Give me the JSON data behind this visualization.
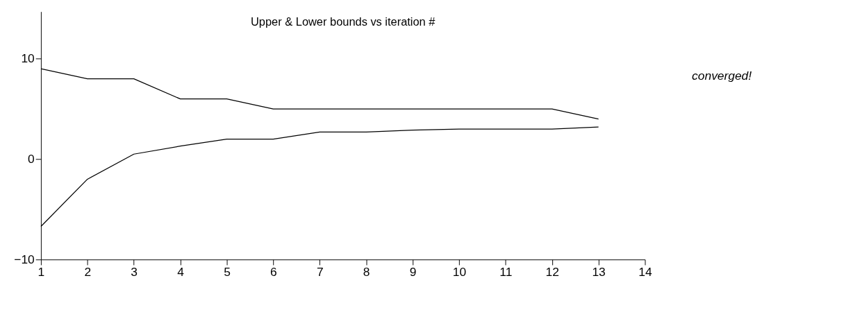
{
  "chart_data": {
    "type": "line",
    "title": "Upper & Lower bounds vs iteration #",
    "x": [
      1,
      2,
      3,
      4,
      5,
      6,
      7,
      8,
      9,
      10,
      11,
      12,
      13
    ],
    "series": [
      {
        "color": "#000000",
        "values": [
          9,
          8,
          8,
          6,
          6,
          5,
          5,
          5,
          5,
          5,
          5,
          5,
          4
        ]
      },
      {
        "color": "#000000",
        "values": [
          -6.7,
          -2,
          0.5,
          1.3,
          2,
          2,
          2.7,
          2.7,
          2.9,
          3,
          3,
          3,
          3.2
        ]
      }
    ],
    "xlim": [
      1,
      14
    ],
    "xticks": [
      1,
      2,
      3,
      4,
      5,
      6,
      7,
      8,
      9,
      10,
      11,
      12,
      13,
      14
    ],
    "ylim": [
      -10,
      14.7
    ],
    "yticks": [
      -10,
      0,
      10
    ],
    "grid": false,
    "legend": false,
    "marker": "none",
    "line_style": "solid",
    "annotations": [
      "converged!"
    ]
  }
}
